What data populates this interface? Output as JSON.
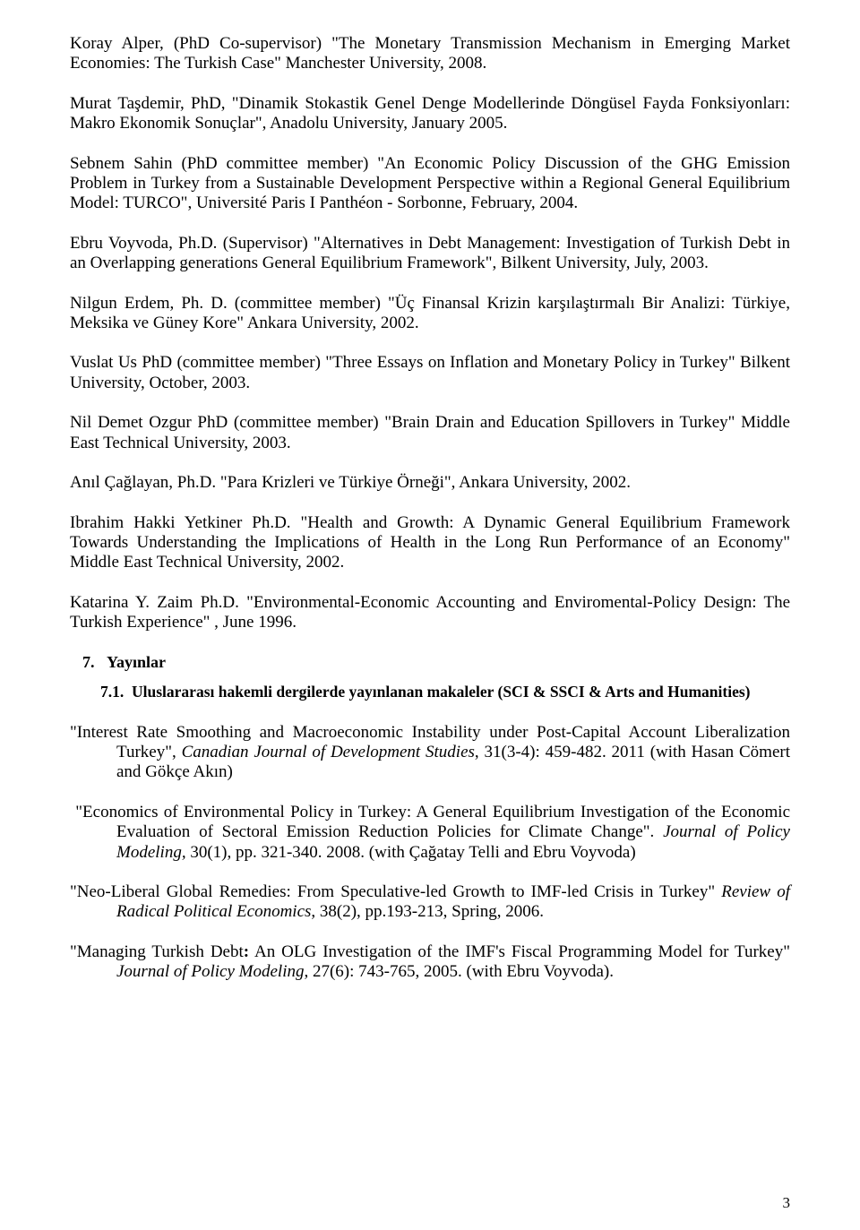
{
  "entries": {
    "e1_a": "Koray Alper, (PhD Co-supervisor) \"The Monetary Transmission Mechanism in Emerging Market Economies: The Turkish Case\" Manchester University, 2008.",
    "e2_a": "Murat Taşdemir, PhD, \"Dinamik Stokastik Genel Denge Modellerinde Döngüsel Fayda Fonksiyonları: Makro Ekonomik Sonuçlar\", Anadolu University, January 2005.",
    "e3_a": "Sebnem Sahin (PhD committee member) \"An Economic Policy Discussion of the GHG Emission Problem in Turkey from a Sustainable Development Perspective within a Regional General Equilibrium Model: TURCO\", Université Paris I Panthéon - Sorbonne, February, 2004.",
    "e4_a": "Ebru Voyvoda, Ph.D. (Supervisor) \"Alternatives in Debt Management: Investigation of Turkish Debt in an Overlapping generations General Equilibrium Framework\", Bilkent University, July, 2003.",
    "e5_a": "Nilgun Erdem, Ph. D. (committee member) \"Üç Finansal Krizin karşılaştırmalı Bir Analizi: Türkiye, Meksika ve Güney Kore\" Ankara University, 2002.",
    "e6_a": "Vuslat Us PhD (committee member) \"Three Essays on Inflation and Monetary Policy in  Turkey\" Bilkent University, October, 2003.",
    "e7_a": "Nil Demet Ozgur PhD (committee member) \"Brain Drain and Education Spillovers in Turkey\" Middle East Technical University, 2003.",
    "e8_a": "Anıl Çağlayan, Ph.D. \"Para Krizleri ve Türkiye Örneği\", Ankara University, 2002.",
    "e9_a": "Ibrahim Hakki Yetkiner Ph.D. \"Health and Growth: A Dynamic General Equilibrium Framework Towards Understanding the Implications of Health in the Long Run Performance of an Economy\" Middle East Technical University, 2002.",
    "e10_a": "Katarina Y. Zaim Ph.D. \"Environmental-Economic Accounting and Enviromental-Policy Design: The Turkish Experience\" , June 1996."
  },
  "section": {
    "num": "7.",
    "title": "Yayınlar",
    "sub_num": "7.1.",
    "sub_title": "Uluslararası hakemli dergilerde yayınlanan makaleler (SCI & SSCI & Arts and Humanities)"
  },
  "pubs": {
    "p1_a": "\"Interest Rate Smoothing and Macroeconomic Instability under Post-Capital Account Liberalization Turkey\", ",
    "p1_i": "Canadian Journal of Development Studies",
    "p1_b": ", 31(3-4): 459-482. 2011 (with Hasan Cömert and Gökçe Akın)",
    "p2_a": "\"Economics of Environmental Policy in Turkey: A General Equilibrium Investigation of the Economic Evaluation of Sectoral Emission Reduction Policies for Climate Change\". ",
    "p2_i": "Journal of Policy Modeling,",
    "p2_b": " 30(1), pp. 321-340. 2008. (with Çağatay Telli and Ebru Voyvoda)",
    "p3_a": "\"Neo-Liberal Global Remedies: From Speculative-led Growth to IMF-led Crisis in Turkey\" ",
    "p3_i": "Review of Radical Political Economics",
    "p3_b": ", 38(2), pp.193-213, Spring, 2006.",
    "p4_a": "\"Managing Turkish Debt",
    "p4_bold": ":",
    "p4_b": " An OLG Investigation of the IMF's Fiscal Programming Model for Turkey\" ",
    "p4_i": "Journal of Policy Modeling",
    "p4_c": ", 27(6): 743-765, 2005. (with Ebru Voyvoda)."
  },
  "page_number": "3"
}
